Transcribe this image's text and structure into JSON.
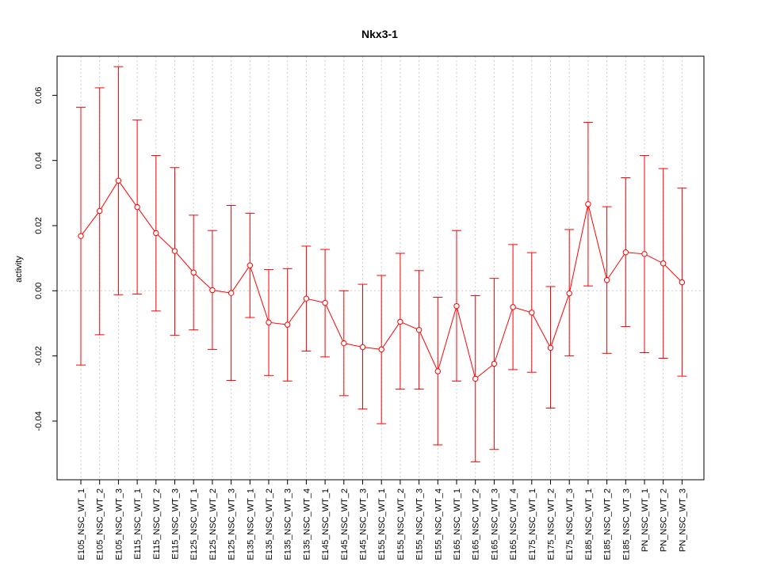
{
  "chart_data": {
    "type": "line",
    "title": "Nkx3-1",
    "xlabel": "",
    "ylabel": "activity",
    "ylim": [
      -0.058,
      0.072
    ],
    "yticks": [
      -0.04,
      -0.02,
      0.0,
      0.02,
      0.04,
      0.06
    ],
    "ytick_labels": [
      "-0.04",
      "-0.02",
      "0.00",
      "0.02",
      "0.04",
      "0.06"
    ],
    "grid": true,
    "series_color": "#ff0000",
    "grid_color": "#cccccc",
    "categories": [
      "E105_NSC_WT_1",
      "E105_NSC_WT_2",
      "E105_NSC_WT_3",
      "E115_NSC_WT_1",
      "E115_NSC_WT_2",
      "E115_NSC_WT_3",
      "E125_NSC_WT_1",
      "E125_NSC_WT_2",
      "E125_NSC_WT_3",
      "E135_NSC_WT_1",
      "E135_NSC_WT_2",
      "E135_NSC_WT_3",
      "E135_NSC_WT_4",
      "E145_NSC_WT_1",
      "E145_NSC_WT_2",
      "E145_NSC_WT_3",
      "E155_NSC_WT_1",
      "E155_NSC_WT_2",
      "E155_NSC_WT_3",
      "E155_NSC_WT_4",
      "E165_NSC_WT_1",
      "E165_NSC_WT_2",
      "E165_NSC_WT_3",
      "E165_NSC_WT_4",
      "E175_NSC_WT_1",
      "E175_NSC_WT_2",
      "E175_NSC_WT_3",
      "E185_NSC_WT_1",
      "E185_NSC_WT_2",
      "E185_NSC_WT_3",
      "PN_NSC_WT_1",
      "PN_NSC_WT_2",
      "PN_NSC_WT_3"
    ],
    "values": [
      0.0168,
      0.0245,
      0.0338,
      0.0257,
      0.0177,
      0.0122,
      0.0056,
      0.0002,
      -0.0007,
      0.0078,
      -0.0097,
      -0.0104,
      -0.0024,
      -0.0037,
      -0.0161,
      -0.0173,
      -0.018,
      -0.0095,
      -0.012,
      -0.0247,
      -0.0047,
      -0.027,
      -0.0224,
      -0.005,
      -0.0067,
      -0.0175,
      -0.0008,
      0.0266,
      0.0033,
      0.0118,
      0.0113,
      0.0084,
      0.0026
    ],
    "lower": [
      -0.0228,
      -0.0135,
      -0.0012,
      -0.001,
      -0.0062,
      -0.0137,
      -0.012,
      -0.018,
      -0.0275,
      -0.0082,
      -0.026,
      -0.0277,
      -0.0185,
      -0.0203,
      -0.0322,
      -0.0363,
      -0.0408,
      -0.0302,
      -0.0302,
      -0.0473,
      -0.0277,
      -0.0525,
      -0.0487,
      -0.0242,
      -0.025,
      -0.036,
      -0.02,
      0.0015,
      -0.0192,
      -0.011,
      -0.019,
      -0.0207,
      -0.0262
    ],
    "upper": [
      0.0563,
      0.0623,
      0.0688,
      0.0524,
      0.0415,
      0.0378,
      0.0232,
      0.0185,
      0.0262,
      0.0238,
      0.0065,
      0.0068,
      0.0137,
      0.0127,
      0.0,
      0.002,
      0.0047,
      0.0115,
      0.0062,
      -0.002,
      0.0185,
      -0.0015,
      0.0038,
      0.0142,
      0.0117,
      0.0013,
      0.0188,
      0.0517,
      0.0258,
      0.0347,
      0.0415,
      0.0375,
      0.0315
    ]
  }
}
